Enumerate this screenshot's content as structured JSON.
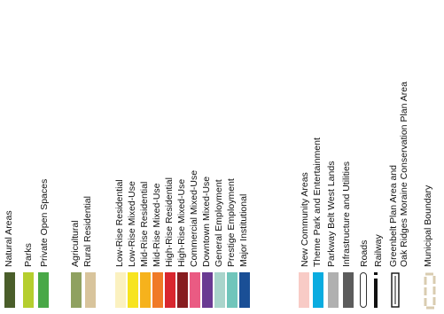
{
  "legend": {
    "groups": [
      {
        "items": [
          {
            "label": "Natural Areas",
            "color": "#4a5e2a"
          },
          {
            "label": "Parks",
            "color": "#b5ce2e"
          },
          {
            "label": "Private Open Spaces",
            "color": "#49a847"
          }
        ]
      },
      {
        "items": [
          {
            "label": "Agricultural",
            "color": "#8fa160"
          },
          {
            "label": "Rural Residential",
            "color": "#d8c49c"
          }
        ]
      },
      {
        "items": [
          {
            "label": "Low-Rise Residential",
            "color": "#fbf1c0"
          },
          {
            "label": "Low-Rise Mixed-Use",
            "color": "#f7e420"
          },
          {
            "label": "Mid-Rise Residential",
            "color": "#f6b21c"
          },
          {
            "label": "Mid-Rise Mixed-Use",
            "color": "#f07a26"
          },
          {
            "label": "High-Rise Residential",
            "color": "#d9262e"
          },
          {
            "label": "High-Rise Mixed-Use",
            "color": "#871c1f"
          },
          {
            "label": "Commercial Mixed-Use",
            "color": "#ea5b83"
          },
          {
            "label": "Downtown Mixed-Use",
            "color": "#6a3a92"
          },
          {
            "label": "General Employment",
            "color": "#a9d4cb"
          },
          {
            "label": "Prestige Employment",
            "color": "#70c5bb"
          },
          {
            "label": "Major Institutional",
            "color": "#1a4f96"
          }
        ]
      },
      {
        "items": [
          {
            "label": "New Community Areas",
            "color": "#f8cbc6"
          },
          {
            "label": "Theme Park and Entertainment",
            "color": "#0aace0"
          },
          {
            "label": "Parkway Belt West Lands",
            "color": "#b0b0b0"
          },
          {
            "label": "Infrastructure and Utilities",
            "color": "#5c5c5c"
          },
          {
            "label": "Roads",
            "color": "#ffffff",
            "symbol": "road-outline"
          },
          {
            "label": "Railway",
            "color": "#111111",
            "symbol": "railway-dashed"
          }
        ]
      },
      {
        "items": [
          {
            "label": "Greenbelt Plan Area and\nOak Ridges Moraine Conservation Plan Area",
            "color": "#ffffff",
            "symbol": "greenbelt-bracket"
          }
        ]
      },
      {
        "items": [
          {
            "label": "Municipal Boundary",
            "color": "#d9ccb0",
            "symbol": "boundary-dashed"
          }
        ]
      }
    ]
  }
}
